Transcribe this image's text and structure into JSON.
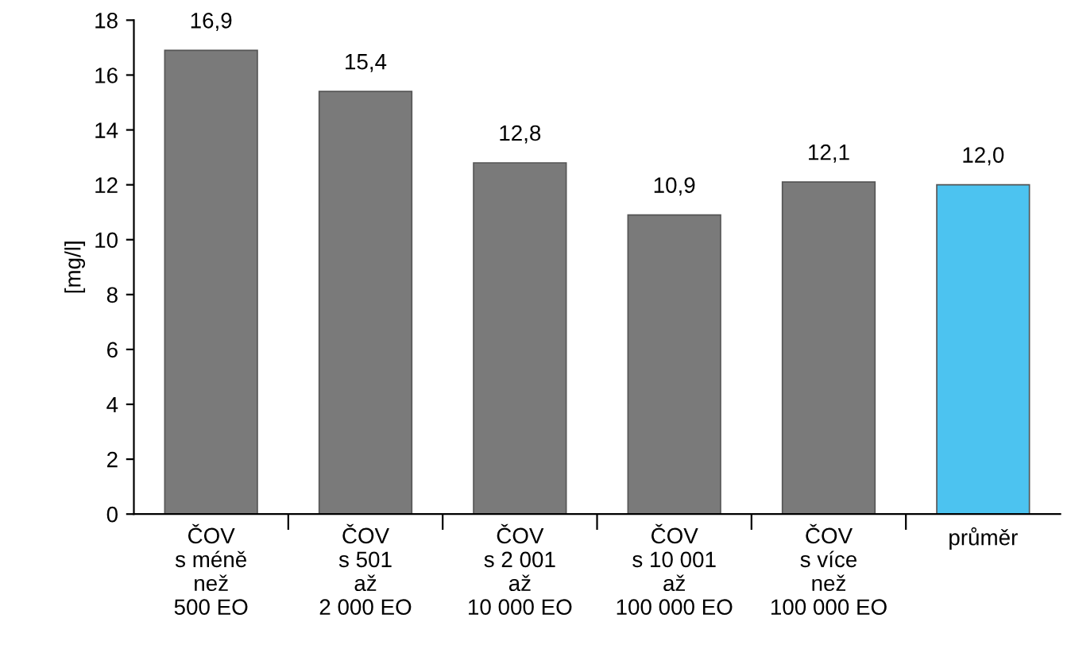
{
  "chart_data": {
    "type": "bar",
    "ylabel": "[mg/l]",
    "categories": [
      "ČOV\ns méně\nnež\n500 EO",
      "ČOV\ns 501\naž\n2 000 EO",
      "ČOV\ns 2 001\naž\n10 000 EO",
      "ČOV\ns 10 001\naž\n100 000 EO",
      "ČOV\ns více\nnež\n100 000 EO",
      "průměr"
    ],
    "values": [
      16.9,
      15.4,
      12.8,
      10.9,
      12.1,
      12.0
    ],
    "value_labels": [
      "16,9",
      "15,4",
      "12,8",
      "10,9",
      "12,1",
      "12,0"
    ],
    "colors": [
      "#7a7a7a",
      "#7a7a7a",
      "#7a7a7a",
      "#7a7a7a",
      "#7a7a7a",
      "#4cc3f0"
    ],
    "ylim": [
      0,
      18
    ],
    "yticks": [
      0,
      2,
      4,
      6,
      8,
      10,
      12,
      14,
      16,
      18
    ],
    "grid": false,
    "legend": false
  }
}
